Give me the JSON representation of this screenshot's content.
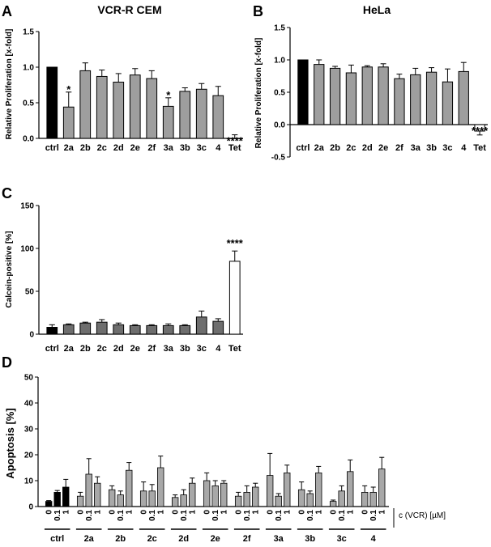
{
  "panels": [
    {
      "letter": "A",
      "chart_data": {
        "type": "bar",
        "title": "VCR-R CEM",
        "ylabel": "Relative Proliferation [x-fold]",
        "xlabel": "",
        "ylim": [
          0,
          1.5
        ],
        "yticks": [
          "0.0",
          "0.5",
          "1.0",
          "1.5"
        ],
        "categories": [
          "ctrl",
          "2a",
          "2b",
          "2c",
          "2d",
          "2e",
          "2f",
          "3a",
          "3b",
          "3c",
          "4",
          "Tet"
        ],
        "values": [
          1.0,
          0.44,
          0.95,
          0.87,
          0.79,
          0.89,
          0.84,
          0.45,
          0.66,
          0.69,
          0.6,
          0.0
        ],
        "errors": [
          0.0,
          0.21,
          0.11,
          0.09,
          0.12,
          0.09,
          0.11,
          0.12,
          0.05,
          0.08,
          0.13,
          0.05
        ],
        "colors": [
          "#000000",
          "#9e9e9e",
          "#9e9e9e",
          "#9e9e9e",
          "#9e9e9e",
          "#9e9e9e",
          "#9e9e9e",
          "#9e9e9e",
          "#9e9e9e",
          "#9e9e9e",
          "#9e9e9e",
          "#ffffff"
        ],
        "annotations": [
          "",
          "*",
          "",
          "",
          "",
          "",
          "",
          "*",
          "",
          "",
          "",
          "****"
        ],
        "grid": false
      }
    },
    {
      "letter": "B",
      "chart_data": {
        "type": "bar",
        "title": "HeLa",
        "ylabel": "Relative Proliferation [x-fold]",
        "xlabel": "",
        "ylim": [
          -0.5,
          1.5
        ],
        "yticks": [
          "-0.5",
          "0.0",
          "0.5",
          "1.0",
          "1.5"
        ],
        "categories": [
          "ctrl",
          "2a",
          "2b",
          "2c",
          "2d",
          "2e",
          "2f",
          "3a",
          "3b",
          "3c",
          "4",
          "Tet"
        ],
        "values": [
          1.0,
          0.93,
          0.87,
          0.8,
          0.89,
          0.89,
          0.71,
          0.77,
          0.81,
          0.66,
          0.82,
          -0.1
        ],
        "errors": [
          0.0,
          0.07,
          0.03,
          0.12,
          0.02,
          0.05,
          0.07,
          0.1,
          0.07,
          0.2,
          0.14,
          0.06
        ],
        "colors": [
          "#000000",
          "#9e9e9e",
          "#9e9e9e",
          "#9e9e9e",
          "#9e9e9e",
          "#9e9e9e",
          "#9e9e9e",
          "#9e9e9e",
          "#9e9e9e",
          "#9e9e9e",
          "#9e9e9e",
          "#ffffff"
        ],
        "annotations": [
          "",
          "",
          "",
          "",
          "",
          "",
          "",
          "",
          "",
          "",
          "",
          "****"
        ],
        "grid": false
      }
    },
    {
      "letter": "C",
      "chart_data": {
        "type": "bar",
        "title": "",
        "ylabel": "Calcein-positive [%]",
        "xlabel": "",
        "ylim": [
          0,
          150
        ],
        "yticks": [
          "0",
          "50",
          "100",
          "150"
        ],
        "categories": [
          "ctrl",
          "2a",
          "2b",
          "2c",
          "2d",
          "2e",
          "2f",
          "3a",
          "3b",
          "3c",
          "4",
          "Tet"
        ],
        "values": [
          8,
          11,
          13,
          14,
          11,
          10,
          10,
          10,
          10,
          20,
          15,
          85
        ],
        "errors": [
          3,
          1,
          1,
          3,
          2,
          1,
          1,
          2,
          1,
          7,
          3,
          12
        ],
        "colors": [
          "#000000",
          "#6e6e6e",
          "#6e6e6e",
          "#6e6e6e",
          "#6e6e6e",
          "#6e6e6e",
          "#6e6e6e",
          "#6e6e6e",
          "#6e6e6e",
          "#6e6e6e",
          "#6e6e6e",
          "#ffffff"
        ],
        "annotations": [
          "",
          "",
          "",
          "",
          "",
          "",
          "",
          "",
          "",
          "",
          "",
          "****"
        ],
        "grid": false
      }
    },
    {
      "letter": "D",
      "chart_data": {
        "type": "bar",
        "title": "",
        "ylabel": "Apoptosis [%]",
        "xlabel": "c (VCR) [µM]",
        "ylim": [
          0,
          50
        ],
        "yticks": [
          "0",
          "10",
          "20",
          "30",
          "40",
          "50"
        ],
        "subcategories": [
          "0",
          "0.1",
          "1"
        ],
        "groups": [
          "ctrl",
          "2a",
          "2b",
          "2c",
          "2d",
          "2e",
          "2f",
          "3a",
          "3b",
          "3c",
          "4"
        ],
        "values": [
          [
            2,
            5.5,
            7.5
          ],
          [
            4,
            12.5,
            9
          ],
          [
            6.5,
            4.5,
            14
          ],
          [
            6,
            6,
            15
          ],
          [
            3.5,
            4.5,
            9
          ],
          [
            10,
            8,
            9
          ],
          [
            4,
            5.5,
            7.5
          ],
          [
            12,
            4,
            13
          ],
          [
            6.5,
            5,
            13
          ],
          [
            2,
            6,
            13.5
          ],
          [
            5.5,
            5.5,
            14.5
          ]
        ],
        "errors": [
          [
            0.3,
            0.7,
            3
          ],
          [
            1.5,
            6,
            2.5
          ],
          [
            1.5,
            1.5,
            3
          ],
          [
            3.5,
            2.5,
            4.5
          ],
          [
            1,
            2,
            2
          ],
          [
            3,
            2,
            1
          ],
          [
            1.5,
            2.5,
            1.5
          ],
          [
            8.5,
            1,
            3
          ],
          [
            3,
            1,
            2.5
          ],
          [
            0.5,
            2,
            4.5
          ],
          [
            2.5,
            2,
            4.5
          ]
        ],
        "group_colors": [
          "#000000",
          "#a8a8a8",
          "#a8a8a8",
          "#a8a8a8",
          "#a8a8a8",
          "#a8a8a8",
          "#a8a8a8",
          "#a8a8a8",
          "#a8a8a8",
          "#a8a8a8",
          "#a8a8a8"
        ],
        "grid": false
      }
    }
  ]
}
